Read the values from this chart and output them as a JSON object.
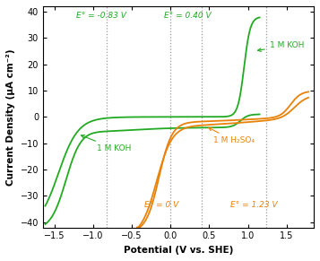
{
  "xlim": [
    -1.65,
    1.85
  ],
  "ylim": [
    -42,
    42
  ],
  "xlabel": "Potential (V vs. SHE)",
  "ylabel": "Current Density (μA cm⁻²)",
  "green_color": "#22aa22",
  "orange_color": "#e8820a",
  "dotted_lines": [
    -0.83,
    0.4,
    0.0,
    1.23
  ],
  "annotation_green_top_left": "E° = -0.83 V",
  "annotation_green_top_right": "E° = 0.40 V",
  "annotation_orange_bot_left": "E° = 0 V",
  "annotation_orange_bot_right": "E° = 1.23 V",
  "label_koh_top": "1 M KOH",
  "label_koh_bot": "1 M KOH",
  "label_h2so4": "1 M H₂SO₄",
  "xticks": [
    -1.5,
    -1.0,
    -0.5,
    0.0,
    0.5,
    1.0,
    1.5
  ],
  "yticks": [
    -40,
    -30,
    -20,
    -10,
    0,
    10,
    20,
    30,
    40
  ]
}
